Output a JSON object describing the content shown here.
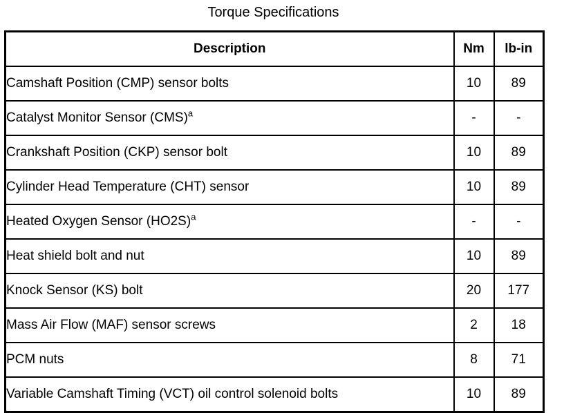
{
  "title": "Torque Specifications",
  "colors": {
    "background": "#ffffff",
    "text": "#000000",
    "border": "#000000"
  },
  "table": {
    "columns": [
      "Description",
      "Nm",
      "lb-in"
    ],
    "rows": [
      {
        "description": "Camshaft Position (CMP) sensor bolts",
        "footnote": "",
        "nm": "10",
        "lb_in": "89"
      },
      {
        "description": "Catalyst Monitor Sensor (CMS)",
        "footnote": "a",
        "nm": "-",
        "lb_in": "-"
      },
      {
        "description": "Crankshaft Position (CKP) sensor bolt",
        "footnote": "",
        "nm": "10",
        "lb_in": "89"
      },
      {
        "description": "Cylinder Head Temperature (CHT) sensor",
        "footnote": "",
        "nm": "10",
        "lb_in": "89"
      },
      {
        "description": "Heated Oxygen Sensor (HO2S)",
        "footnote": "a",
        "nm": "-",
        "lb_in": "-"
      },
      {
        "description": "Heat shield bolt and nut",
        "footnote": "",
        "nm": "10",
        "lb_in": "89"
      },
      {
        "description": "Knock Sensor (KS) bolt",
        "footnote": "",
        "nm": "20",
        "lb_in": "177"
      },
      {
        "description": "Mass Air Flow (MAF) sensor screws",
        "footnote": "",
        "nm": "2",
        "lb_in": "18"
      },
      {
        "description": "PCM nuts",
        "footnote": "",
        "nm": "8",
        "lb_in": "71"
      },
      {
        "description": "Variable Camshaft Timing (VCT) oil control solenoid bolts",
        "footnote": "",
        "nm": "10",
        "lb_in": "89"
      }
    ]
  }
}
